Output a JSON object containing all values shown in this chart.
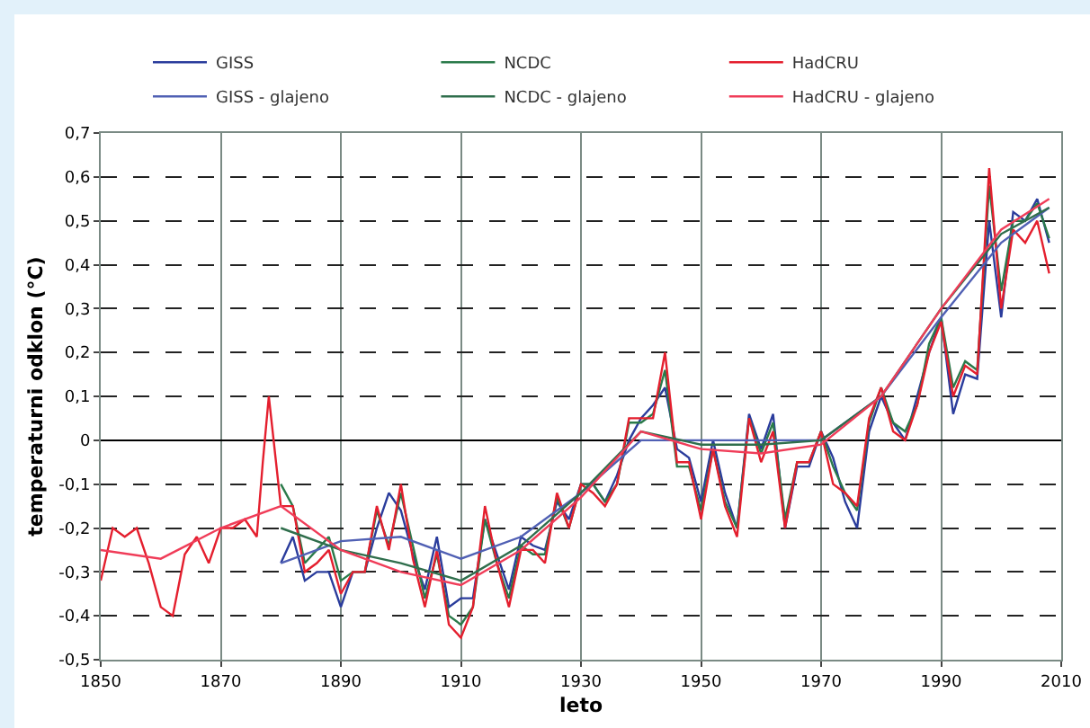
{
  "chart_data": {
    "type": "line",
    "xlabel": "leto",
    "ylabel": "temperaturni odklon (°C)",
    "xlim": [
      1850,
      2010
    ],
    "xticks": [
      1850,
      1870,
      1890,
      1910,
      1930,
      1950,
      1970,
      1990,
      2010
    ],
    "ylim": [
      -0.5,
      0.7
    ],
    "yticks": [
      {
        "value": -0.5,
        "label": "-0,5"
      },
      {
        "value": -0.4,
        "label": "-0,4"
      },
      {
        "value": -0.3,
        "label": "-0,3"
      },
      {
        "value": -0.2,
        "label": "-0,2"
      },
      {
        "value": -0.1,
        "label": "-0,1"
      },
      0,
      {
        "value": 0.1,
        "label": "0,1"
      },
      {
        "value": 0.2,
        "label": "0,2"
      },
      {
        "value": 0.3,
        "label": "0,3"
      },
      {
        "value": 0.4,
        "label": "0,4"
      },
      {
        "value": 0.5,
        "label": "0,5"
      },
      {
        "value": 0.6,
        "label": "0,6"
      },
      {
        "value": 0.7,
        "label": "0,7"
      }
    ],
    "grid": true,
    "legend": "top",
    "marker": "none",
    "line_style": "solid",
    "series": [
      {
        "name": "GISS",
        "color": "#2a3c9c",
        "x": [
          1880,
          1882,
          1884,
          1886,
          1888,
          1890,
          1892,
          1894,
          1896,
          1898,
          1900,
          1902,
          1904,
          1906,
          1908,
          1910,
          1912,
          1914,
          1916,
          1918,
          1920,
          1922,
          1924,
          1926,
          1928,
          1930,
          1932,
          1934,
          1936,
          1938,
          1940,
          1942,
          1944,
          1946,
          1948,
          1950,
          1952,
          1954,
          1956,
          1958,
          1960,
          1962,
          1964,
          1966,
          1968,
          1970,
          1972,
          1974,
          1976,
          1978,
          1980,
          1982,
          1984,
          1986,
          1988,
          1990,
          1992,
          1994,
          1996,
          1998,
          2000,
          2002,
          2004,
          2006,
          2008
        ],
        "values": [
          -0.28,
          -0.22,
          -0.32,
          -0.3,
          -0.3,
          -0.38,
          -0.3,
          -0.3,
          -0.2,
          -0.12,
          -0.16,
          -0.26,
          -0.34,
          -0.22,
          -0.38,
          -0.36,
          -0.36,
          -0.18,
          -0.26,
          -0.34,
          -0.22,
          -0.24,
          -0.25,
          -0.14,
          -0.18,
          -0.1,
          -0.1,
          -0.14,
          -0.08,
          0.0,
          0.05,
          0.08,
          0.12,
          -0.02,
          -0.04,
          -0.14,
          0.0,
          -0.12,
          -0.2,
          0.06,
          -0.02,
          0.06,
          -0.2,
          -0.06,
          -0.06,
          0.02,
          -0.04,
          -0.14,
          -0.2,
          0.02,
          0.1,
          0.04,
          0.0,
          0.1,
          0.2,
          0.28,
          0.06,
          0.15,
          0.14,
          0.5,
          0.28,
          0.52,
          0.5,
          0.55,
          0.45
        ]
      },
      {
        "name": "NCDC",
        "color": "#2a7a4a",
        "x": [
          1880,
          1882,
          1884,
          1886,
          1888,
          1890,
          1892,
          1894,
          1896,
          1898,
          1900,
          1902,
          1904,
          1906,
          1908,
          1910,
          1912,
          1914,
          1916,
          1918,
          1920,
          1922,
          1924,
          1926,
          1928,
          1930,
          1932,
          1934,
          1936,
          1938,
          1940,
          1942,
          1944,
          1946,
          1948,
          1950,
          1952,
          1954,
          1956,
          1958,
          1960,
          1962,
          1964,
          1966,
          1968,
          1970,
          1972,
          1974,
          1976,
          1978,
          1980,
          1982,
          1984,
          1986,
          1988,
          1990,
          1992,
          1994,
          1996,
          1998,
          2000,
          2002,
          2004,
          2006,
          2008
        ],
        "values": [
          -0.1,
          -0.15,
          -0.28,
          -0.25,
          -0.22,
          -0.32,
          -0.3,
          -0.3,
          -0.16,
          -0.24,
          -0.12,
          -0.24,
          -0.36,
          -0.26,
          -0.4,
          -0.42,
          -0.38,
          -0.18,
          -0.28,
          -0.36,
          -0.24,
          -0.26,
          -0.26,
          -0.13,
          -0.2,
          -0.1,
          -0.1,
          -0.14,
          -0.1,
          0.04,
          0.04,
          0.06,
          0.16,
          -0.06,
          -0.06,
          -0.16,
          -0.02,
          -0.14,
          -0.2,
          0.05,
          -0.03,
          0.04,
          -0.18,
          -0.05,
          -0.05,
          0.02,
          -0.06,
          -0.12,
          -0.16,
          0.04,
          0.12,
          0.04,
          0.02,
          0.08,
          0.22,
          0.28,
          0.12,
          0.18,
          0.16,
          0.58,
          0.34,
          0.5,
          0.5,
          0.54,
          0.46
        ]
      },
      {
        "name": "HadCRU",
        "color": "#e41f2e",
        "x": [
          1850,
          1852,
          1854,
          1856,
          1858,
          1860,
          1862,
          1864,
          1866,
          1868,
          1870,
          1872,
          1874,
          1876,
          1877,
          1878,
          1880,
          1882,
          1884,
          1886,
          1888,
          1890,
          1892,
          1894,
          1896,
          1898,
          1900,
          1902,
          1904,
          1906,
          1908,
          1910,
          1912,
          1914,
          1916,
          1918,
          1920,
          1922,
          1924,
          1926,
          1928,
          1930,
          1932,
          1934,
          1936,
          1938,
          1940,
          1942,
          1944,
          1946,
          1948,
          1950,
          1952,
          1954,
          1956,
          1958,
          1960,
          1962,
          1964,
          1966,
          1968,
          1970,
          1972,
          1974,
          1976,
          1978,
          1980,
          1982,
          1984,
          1986,
          1988,
          1990,
          1992,
          1994,
          1996,
          1998,
          2000,
          2002,
          2004,
          2006,
          2008
        ],
        "values": [
          -0.32,
          -0.2,
          -0.22,
          -0.2,
          -0.28,
          -0.38,
          -0.4,
          -0.26,
          -0.22,
          -0.28,
          -0.2,
          -0.2,
          -0.18,
          -0.22,
          -0.05,
          0.1,
          -0.15,
          -0.15,
          -0.3,
          -0.28,
          -0.25,
          -0.35,
          -0.3,
          -0.3,
          -0.15,
          -0.25,
          -0.1,
          -0.27,
          -0.38,
          -0.25,
          -0.42,
          -0.45,
          -0.38,
          -0.15,
          -0.28,
          -0.38,
          -0.25,
          -0.25,
          -0.28,
          -0.12,
          -0.2,
          -0.1,
          -0.12,
          -0.15,
          -0.1,
          0.05,
          0.05,
          0.05,
          0.2,
          -0.05,
          -0.05,
          -0.18,
          -0.02,
          -0.15,
          -0.22,
          0.05,
          -0.05,
          0.02,
          -0.2,
          -0.05,
          -0.05,
          0.02,
          -0.1,
          -0.12,
          -0.15,
          0.05,
          0.12,
          0.02,
          0.0,
          0.08,
          0.2,
          0.27,
          0.1,
          0.17,
          0.15,
          0.62,
          0.3,
          0.48,
          0.45,
          0.5,
          0.38
        ]
      },
      {
        "name": "GISS - glajeno",
        "color": "#5060b4",
        "x": [
          1880,
          1890,
          1900,
          1910,
          1920,
          1930,
          1940,
          1950,
          1960,
          1970,
          1980,
          1990,
          2000,
          2008
        ],
        "values": [
          -0.28,
          -0.23,
          -0.22,
          -0.27,
          -0.22,
          -0.12,
          0.0,
          0.0,
          0.0,
          0.0,
          0.1,
          0.28,
          0.45,
          0.53
        ]
      },
      {
        "name": "NCDC - glajeno",
        "color": "#2f6e4c",
        "x": [
          1880,
          1890,
          1900,
          1910,
          1920,
          1930,
          1940,
          1950,
          1960,
          1970,
          1980,
          1990,
          2000,
          2008
        ],
        "values": [
          -0.2,
          -0.25,
          -0.28,
          -0.32,
          -0.24,
          -0.12,
          0.02,
          -0.01,
          -0.01,
          0.0,
          0.1,
          0.3,
          0.47,
          0.53
        ]
      },
      {
        "name": "HadCRU - glajeno",
        "color": "#f03c58",
        "x": [
          1850,
          1860,
          1870,
          1880,
          1890,
          1900,
          1910,
          1920,
          1930,
          1940,
          1950,
          1960,
          1970,
          1980,
          1990,
          2000,
          2008
        ],
        "values": [
          -0.25,
          -0.27,
          -0.2,
          -0.15,
          -0.25,
          -0.3,
          -0.33,
          -0.25,
          -0.13,
          0.02,
          -0.02,
          -0.03,
          -0.01,
          0.1,
          0.3,
          0.48,
          0.55
        ]
      }
    ]
  }
}
